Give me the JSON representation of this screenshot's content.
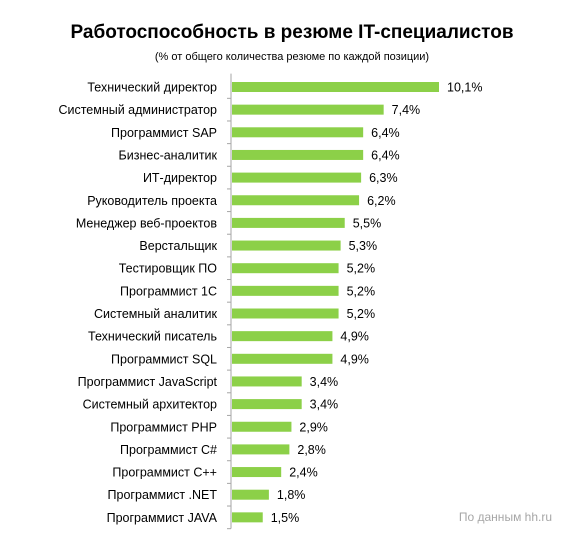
{
  "chart_data": {
    "type": "bar",
    "orientation": "horizontal",
    "title": "Работоспособность  в резюме IT-специалистов",
    "subtitle": "(% от общего количества резюме по  каждой позиции)",
    "categories": [
      "Технический директор",
      "Системный администратор",
      "Программист SAP",
      "Бизнес-аналитик",
      "ИТ-директор",
      "Руководитель проекта",
      "Менеджер веб-проектов",
      "Верстальщик",
      "Тестировщик ПО",
      "Программист 1С",
      "Системный аналитик",
      "Технический писатель",
      "Программист SQL",
      "Программист JavaScript",
      "Системный архитектор",
      "Программист PHP",
      "Программист C#",
      "Программист C++",
      "Программист .NET",
      "Программист JAVA"
    ],
    "values": [
      10.1,
      7.4,
      6.4,
      6.4,
      6.3,
      6.2,
      5.5,
      5.3,
      5.2,
      5.2,
      5.2,
      4.9,
      4.9,
      3.4,
      3.4,
      2.9,
      2.8,
      2.4,
      1.8,
      1.5
    ],
    "value_labels": [
      "10,1%",
      "7,4%",
      "6,4%",
      "6,4%",
      "6,3%",
      "6,2%",
      "5,5%",
      "5,3%",
      "5,2%",
      "5,2%",
      "5,2%",
      "4,9%",
      "4,9%",
      "3,4%",
      "3,4%",
      "2,9%",
      "2,8%",
      "2,4%",
      "1,8%",
      "1,5%"
    ],
    "xlabel": "",
    "ylabel": "",
    "xlim": [
      0,
      10.1
    ],
    "grid": false,
    "bar_color": "#8cd048",
    "axis_color": "#a6a6a6",
    "source_note": "По данным hh.ru"
  }
}
